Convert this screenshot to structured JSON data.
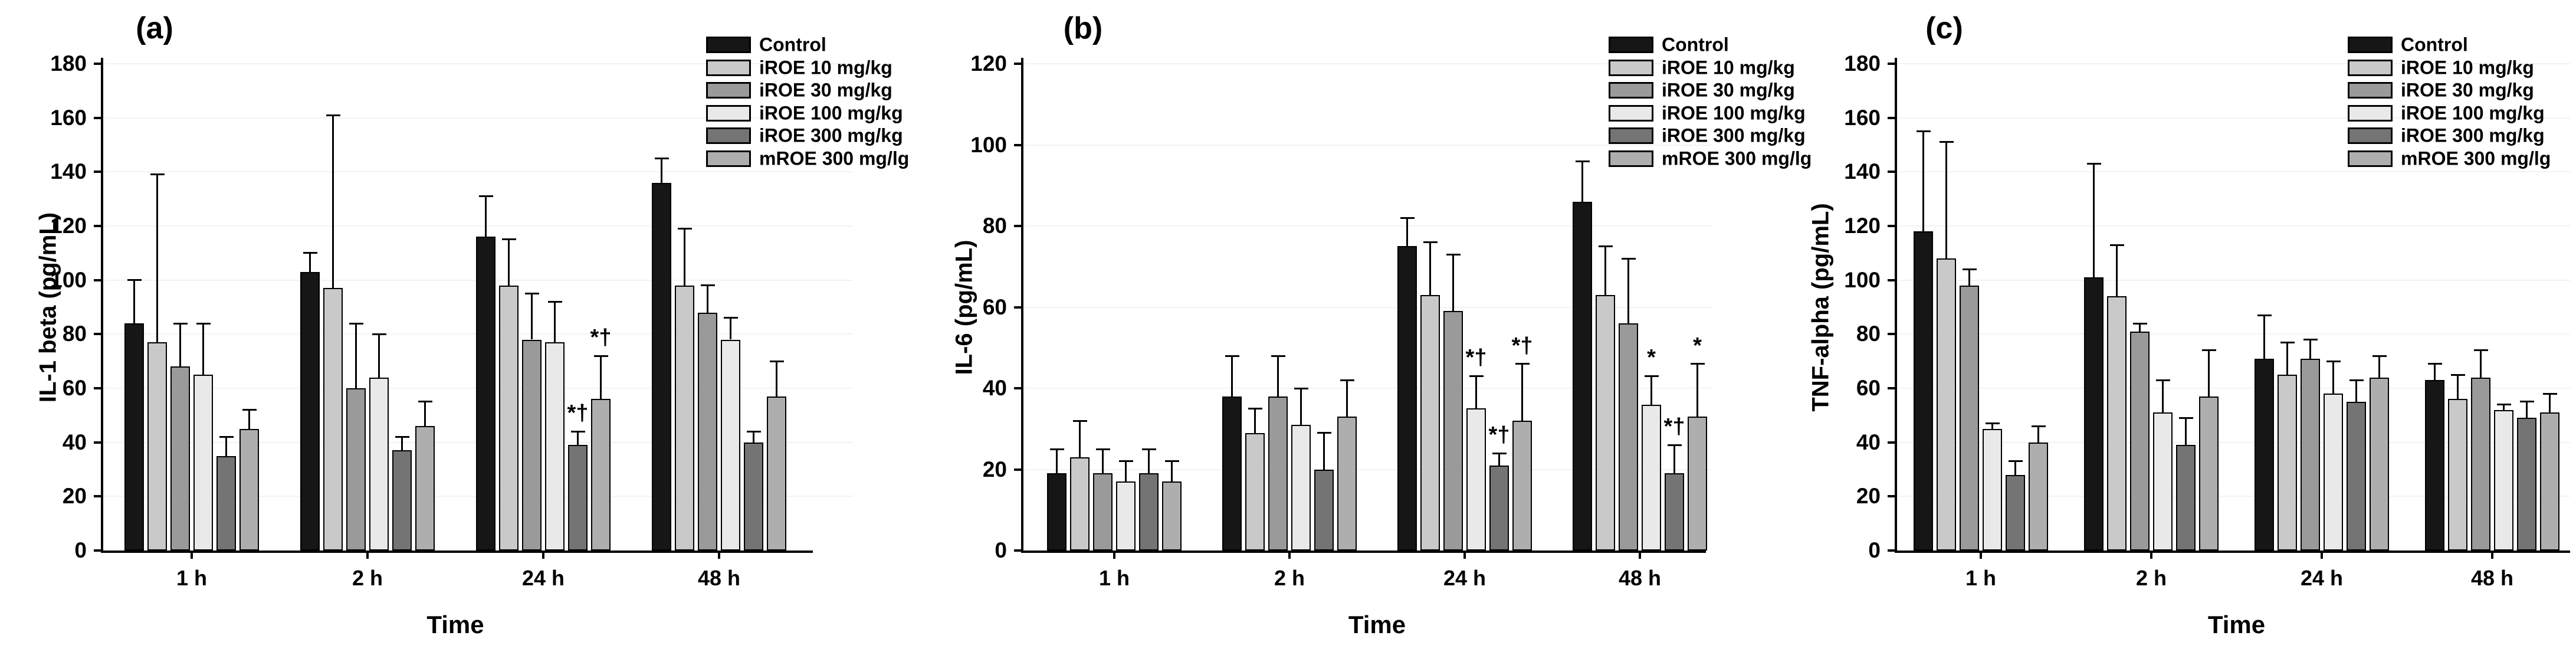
{
  "figure": {
    "background": "#ffffff",
    "text_color": "#000000",
    "legend_labels": [
      "Control",
      "iROE 10 mg/kg",
      "iROE 30 mg/kg",
      "iROE 100 mg/kg",
      "iROE 300 mg/kg",
      "mROE 300 mg/lg"
    ],
    "series_colors": [
      "#161616",
      "#c9c9c9",
      "#9a9a9a",
      "#e9e9e9",
      "#747474",
      "#aeaeae"
    ]
  },
  "chart_data": [
    {
      "type": "bar",
      "panel_label": "(a)",
      "ylabel": "IL-1 beta (pg/mL)",
      "xlabel": "Time",
      "ylim": [
        0,
        180
      ],
      "ytick_step": 20,
      "grid": "faint-horizontal",
      "legend_position": "top-right",
      "categories": [
        "1 h",
        "2 h",
        "24 h",
        "48 h"
      ],
      "series": [
        {
          "name": "Control",
          "color": "#161616",
          "values": [
            84,
            103,
            116,
            136
          ],
          "errors_up": [
            16,
            7,
            15,
            9
          ],
          "annotations": [
            "",
            "",
            "",
            ""
          ]
        },
        {
          "name": "iROE 10 mg/kg",
          "color": "#c9c9c9",
          "values": [
            77,
            97,
            98,
            98
          ],
          "errors_up": [
            62,
            64,
            17,
            21
          ],
          "annotations": [
            "",
            "",
            "",
            ""
          ]
        },
        {
          "name": "iROE 30 mg/kg",
          "color": "#9a9a9a",
          "values": [
            68,
            60,
            78,
            88
          ],
          "errors_up": [
            16,
            24,
            17,
            10
          ],
          "annotations": [
            "",
            "",
            "",
            ""
          ]
        },
        {
          "name": "iROE 100 mg/kg",
          "color": "#e9e9e9",
          "values": [
            65,
            64,
            77,
            78
          ],
          "errors_up": [
            19,
            16,
            15,
            8
          ],
          "annotations": [
            "",
            "",
            "",
            ""
          ]
        },
        {
          "name": "iROE 300 mg/kg",
          "color": "#747474",
          "values": [
            35,
            37,
            39,
            40
          ],
          "errors_up": [
            7,
            5,
            5,
            4
          ],
          "annotations": [
            "",
            "",
            "*†",
            ""
          ]
        },
        {
          "name": "mROE 300 mg/lg",
          "color": "#aeaeae",
          "values": [
            45,
            46,
            56,
            57
          ],
          "errors_up": [
            7,
            9,
            16,
            13
          ],
          "annotations": [
            "",
            "",
            "*†",
            ""
          ]
        }
      ]
    },
    {
      "type": "bar",
      "panel_label": "(b)",
      "ylabel": "IL-6 (pg/mL)",
      "xlabel": "Time",
      "ylim": [
        0,
        120
      ],
      "ytick_step": 20,
      "grid": "faint-horizontal",
      "legend_position": "top-right",
      "categories": [
        "1 h",
        "2 h",
        "24 h",
        "48 h"
      ],
      "series": [
        {
          "name": "Control",
          "color": "#161616",
          "values": [
            19,
            38,
            75,
            86
          ],
          "errors_up": [
            6,
            10,
            7,
            10
          ],
          "annotations": [
            "",
            "",
            "",
            ""
          ]
        },
        {
          "name": "iROE 10 mg/kg",
          "color": "#c9c9c9",
          "values": [
            23,
            29,
            63,
            63
          ],
          "errors_up": [
            9,
            6,
            13,
            12
          ],
          "annotations": [
            "",
            "",
            "",
            ""
          ]
        },
        {
          "name": "iROE 30 mg/kg",
          "color": "#9a9a9a",
          "values": [
            19,
            38,
            59,
            56
          ],
          "errors_up": [
            6,
            10,
            14,
            16
          ],
          "annotations": [
            "",
            "",
            "",
            ""
          ]
        },
        {
          "name": "iROE 100 mg/kg",
          "color": "#e9e9e9",
          "values": [
            17,
            31,
            35,
            36
          ],
          "errors_up": [
            5,
            9,
            8,
            7
          ],
          "annotations": [
            "",
            "",
            "*†",
            "*"
          ]
        },
        {
          "name": "iROE 300 mg/kg",
          "color": "#747474",
          "values": [
            19,
            20,
            21,
            19
          ],
          "errors_up": [
            6,
            9,
            3,
            7
          ],
          "annotations": [
            "",
            "",
            "*†",
            "*†"
          ]
        },
        {
          "name": "mROE 300 mg/lg",
          "color": "#aeaeae",
          "values": [
            17,
            33,
            32,
            33
          ],
          "errors_up": [
            5,
            9,
            14,
            13
          ],
          "annotations": [
            "",
            "",
            "*†",
            "*"
          ]
        }
      ]
    },
    {
      "type": "bar",
      "panel_label": "(c)",
      "ylabel": "TNF-alpha (pg/mL)",
      "xlabel": "Time",
      "ylim": [
        0,
        180
      ],
      "ytick_step": 20,
      "grid": "faint-horizontal",
      "legend_position": "top-right",
      "categories": [
        "1 h",
        "2 h",
        "24 h",
        "48 h"
      ],
      "series": [
        {
          "name": "Control",
          "color": "#161616",
          "values": [
            118,
            101,
            71,
            63
          ],
          "errors_up": [
            37,
            42,
            16,
            6
          ],
          "annotations": [
            "",
            "",
            "",
            ""
          ]
        },
        {
          "name": "iROE 10 mg/kg",
          "color": "#c9c9c9",
          "values": [
            108,
            94,
            65,
            56
          ],
          "errors_up": [
            43,
            19,
            12,
            9
          ],
          "annotations": [
            "",
            "",
            "",
            ""
          ]
        },
        {
          "name": "iROE 30 mg/kg",
          "color": "#9a9a9a",
          "values": [
            98,
            81,
            71,
            64
          ],
          "errors_up": [
            6,
            3,
            7,
            10
          ],
          "annotations": [
            "",
            "",
            "",
            ""
          ]
        },
        {
          "name": "iROE 100 mg/kg",
          "color": "#e9e9e9",
          "values": [
            45,
            51,
            58,
            52
          ],
          "errors_up": [
            2,
            12,
            12,
            2
          ],
          "annotations": [
            "",
            "",
            "",
            ""
          ]
        },
        {
          "name": "iROE 300 mg/kg",
          "color": "#747474",
          "values": [
            28,
            39,
            55,
            49
          ],
          "errors_up": [
            5,
            10,
            8,
            6
          ],
          "annotations": [
            "",
            "",
            "",
            ""
          ]
        },
        {
          "name": "mROE 300 mg/lg",
          "color": "#aeaeae",
          "values": [
            40,
            57,
            64,
            51
          ],
          "errors_up": [
            6,
            17,
            8,
            7
          ],
          "annotations": [
            "",
            "",
            "",
            ""
          ]
        }
      ]
    }
  ]
}
